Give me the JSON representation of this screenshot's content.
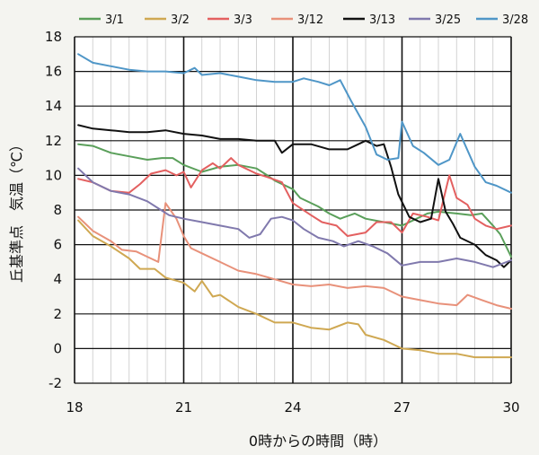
{
  "chart_data": {
    "type": "line",
    "xlabel": "0時からの時間（時）",
    "ylabel": "丘基準点　気温（℃）",
    "xlim": [
      18,
      30
    ],
    "ylim": [
      -2,
      18
    ],
    "x_ticks": [
      "18",
      "21",
      "24",
      "27",
      "30"
    ],
    "y_ticks": [
      "-2",
      "0",
      "2",
      "4",
      "6",
      "8",
      "10",
      "12",
      "14",
      "16",
      "18"
    ],
    "grid": true,
    "legend_position": "top",
    "series": [
      {
        "name": "3/1",
        "color": "#5a9f5a",
        "points": [
          [
            18.1,
            11.8
          ],
          [
            18.5,
            11.7
          ],
          [
            19,
            11.3
          ],
          [
            19.5,
            11.1
          ],
          [
            20,
            10.9
          ],
          [
            20.4,
            11.0
          ],
          [
            20.7,
            11.0
          ],
          [
            21,
            10.6
          ],
          [
            21.5,
            10.2
          ],
          [
            22,
            10.5
          ],
          [
            22.5,
            10.6
          ],
          [
            23,
            10.4
          ],
          [
            23.3,
            10.0
          ],
          [
            23.5,
            9.7
          ],
          [
            24,
            9.2
          ],
          [
            24.2,
            8.7
          ],
          [
            24.7,
            8.2
          ],
          [
            25,
            7.8
          ],
          [
            25.3,
            7.5
          ],
          [
            25.7,
            7.8
          ],
          [
            26,
            7.5
          ],
          [
            26.5,
            7.3
          ],
          [
            27,
            7.1
          ],
          [
            27.3,
            7.4
          ],
          [
            27.7,
            7.8
          ],
          [
            28,
            7.9
          ],
          [
            28.5,
            7.8
          ],
          [
            28.9,
            7.7
          ],
          [
            29.2,
            7.8
          ],
          [
            29.5,
            7.1
          ],
          [
            29.7,
            6.6
          ],
          [
            30,
            5.3
          ]
        ]
      },
      {
        "name": "3/2",
        "color": "#cfa852",
        "points": [
          [
            18.1,
            7.4
          ],
          [
            18.5,
            6.5
          ],
          [
            19,
            5.9
          ],
          [
            19.5,
            5.2
          ],
          [
            19.8,
            4.6
          ],
          [
            20.2,
            4.6
          ],
          [
            20.5,
            4.1
          ],
          [
            21,
            3.8
          ],
          [
            21.3,
            3.3
          ],
          [
            21.5,
            3.9
          ],
          [
            21.8,
            3.0
          ],
          [
            22,
            3.1
          ],
          [
            22.5,
            2.4
          ],
          [
            23,
            2.0
          ],
          [
            23.5,
            1.5
          ],
          [
            24,
            1.5
          ],
          [
            24.5,
            1.2
          ],
          [
            25,
            1.1
          ],
          [
            25.5,
            1.5
          ],
          [
            25.8,
            1.4
          ],
          [
            26,
            0.8
          ],
          [
            26.5,
            0.5
          ],
          [
            27,
            0.0
          ],
          [
            27.5,
            -0.1
          ],
          [
            28,
            -0.3
          ],
          [
            28.5,
            -0.3
          ],
          [
            29,
            -0.5
          ],
          [
            29.5,
            -0.5
          ],
          [
            30,
            -0.5
          ]
        ]
      },
      {
        "name": "3/3",
        "color": "#e36060",
        "points": [
          [
            18.1,
            9.8
          ],
          [
            18.5,
            9.6
          ],
          [
            19,
            9.1
          ],
          [
            19.5,
            9.0
          ],
          [
            19.8,
            9.5
          ],
          [
            20.1,
            10.1
          ],
          [
            20.5,
            10.3
          ],
          [
            20.8,
            10.0
          ],
          [
            21,
            10.2
          ],
          [
            21.2,
            9.3
          ],
          [
            21.5,
            10.3
          ],
          [
            21.8,
            10.7
          ],
          [
            22,
            10.4
          ],
          [
            22.3,
            11.0
          ],
          [
            22.5,
            10.6
          ],
          [
            23,
            10.1
          ],
          [
            23.3,
            9.9
          ],
          [
            23.7,
            9.6
          ],
          [
            24,
            8.4
          ],
          [
            24.5,
            7.7
          ],
          [
            24.8,
            7.3
          ],
          [
            25.2,
            7.1
          ],
          [
            25.5,
            6.5
          ],
          [
            26,
            6.7
          ],
          [
            26.3,
            7.3
          ],
          [
            26.7,
            7.3
          ],
          [
            27,
            6.7
          ],
          [
            27.3,
            7.8
          ],
          [
            27.7,
            7.6
          ],
          [
            28,
            7.4
          ],
          [
            28.3,
            10.0
          ],
          [
            28.5,
            8.7
          ],
          [
            28.8,
            8.3
          ],
          [
            29,
            7.5
          ],
          [
            29.3,
            7.1
          ],
          [
            29.6,
            6.9
          ],
          [
            30,
            7.1
          ]
        ]
      },
      {
        "name": "3/12",
        "color": "#e8917a",
        "points": [
          [
            18.1,
            7.6
          ],
          [
            18.5,
            6.8
          ],
          [
            19,
            6.2
          ],
          [
            19.3,
            5.7
          ],
          [
            19.7,
            5.6
          ],
          [
            20,
            5.3
          ],
          [
            20.3,
            5.0
          ],
          [
            20.5,
            8.4
          ],
          [
            20.8,
            7.5
          ],
          [
            21,
            6.5
          ],
          [
            21.2,
            5.8
          ],
          [
            21.5,
            5.5
          ],
          [
            22,
            5.0
          ],
          [
            22.5,
            4.5
          ],
          [
            23,
            4.3
          ],
          [
            23.5,
            4.0
          ],
          [
            24,
            3.7
          ],
          [
            24.5,
            3.6
          ],
          [
            25,
            3.7
          ],
          [
            25.5,
            3.5
          ],
          [
            26,
            3.6
          ],
          [
            26.5,
            3.5
          ],
          [
            27,
            3.0
          ],
          [
            27.5,
            2.8
          ],
          [
            28,
            2.6
          ],
          [
            28.5,
            2.5
          ],
          [
            28.8,
            3.1
          ],
          [
            29.2,
            2.8
          ],
          [
            29.6,
            2.5
          ],
          [
            30,
            2.3
          ]
        ]
      },
      {
        "name": "3/13",
        "color": "#111111",
        "points": [
          [
            18.1,
            12.9
          ],
          [
            18.5,
            12.7
          ],
          [
            19,
            12.6
          ],
          [
            19.5,
            12.5
          ],
          [
            20,
            12.5
          ],
          [
            20.5,
            12.6
          ],
          [
            21,
            12.4
          ],
          [
            21.5,
            12.3
          ],
          [
            22,
            12.1
          ],
          [
            22.5,
            12.1
          ],
          [
            23,
            12.0
          ],
          [
            23.5,
            12.0
          ],
          [
            23.7,
            11.3
          ],
          [
            24,
            11.8
          ],
          [
            24.5,
            11.8
          ],
          [
            25,
            11.5
          ],
          [
            25.5,
            11.5
          ],
          [
            25.8,
            11.8
          ],
          [
            26,
            12.0
          ],
          [
            26.3,
            11.7
          ],
          [
            26.5,
            11.8
          ],
          [
            26.7,
            10.5
          ],
          [
            26.9,
            8.9
          ],
          [
            27.2,
            7.6
          ],
          [
            27.5,
            7.3
          ],
          [
            27.8,
            7.5
          ],
          [
            28.0,
            9.8
          ],
          [
            28.2,
            7.9
          ],
          [
            28.4,
            7.2
          ],
          [
            28.6,
            6.4
          ],
          [
            29,
            6.0
          ],
          [
            29.3,
            5.4
          ],
          [
            29.6,
            5.1
          ],
          [
            29.8,
            4.7
          ],
          [
            30,
            5.1
          ]
        ]
      },
      {
        "name": "3/25",
        "color": "#8079ad",
        "points": [
          [
            18.1,
            10.4
          ],
          [
            18.5,
            9.6
          ],
          [
            19,
            9.1
          ],
          [
            19.5,
            8.9
          ],
          [
            20,
            8.5
          ],
          [
            20.3,
            8.1
          ],
          [
            20.6,
            7.7
          ],
          [
            21,
            7.5
          ],
          [
            21.5,
            7.3
          ],
          [
            22,
            7.1
          ],
          [
            22.5,
            6.9
          ],
          [
            22.8,
            6.4
          ],
          [
            23.1,
            6.6
          ],
          [
            23.4,
            7.5
          ],
          [
            23.7,
            7.6
          ],
          [
            24,
            7.4
          ],
          [
            24.3,
            6.9
          ],
          [
            24.7,
            6.4
          ],
          [
            25.1,
            6.2
          ],
          [
            25.4,
            5.9
          ],
          [
            25.8,
            6.2
          ],
          [
            26.2,
            5.9
          ],
          [
            26.6,
            5.5
          ],
          [
            27,
            4.8
          ],
          [
            27.5,
            5.0
          ],
          [
            28,
            5.0
          ],
          [
            28.5,
            5.2
          ],
          [
            29,
            5.0
          ],
          [
            29.5,
            4.7
          ],
          [
            30,
            5.1
          ]
        ]
      },
      {
        "name": "3/28",
        "color": "#4f96c7",
        "points": [
          [
            18.1,
            17.0
          ],
          [
            18.5,
            16.5
          ],
          [
            19,
            16.3
          ],
          [
            19.5,
            16.1
          ],
          [
            20,
            16.0
          ],
          [
            20.5,
            16.0
          ],
          [
            21,
            15.9
          ],
          [
            21.3,
            16.2
          ],
          [
            21.5,
            15.8
          ],
          [
            22,
            15.9
          ],
          [
            22.5,
            15.7
          ],
          [
            23,
            15.5
          ],
          [
            23.5,
            15.4
          ],
          [
            24,
            15.4
          ],
          [
            24.3,
            15.6
          ],
          [
            24.7,
            15.4
          ],
          [
            25,
            15.2
          ],
          [
            25.3,
            15.5
          ],
          [
            25.6,
            14.3
          ],
          [
            26,
            12.8
          ],
          [
            26.3,
            11.2
          ],
          [
            26.6,
            10.9
          ],
          [
            26.9,
            11.0
          ],
          [
            27,
            13.1
          ],
          [
            27.3,
            11.7
          ],
          [
            27.6,
            11.3
          ],
          [
            28,
            10.6
          ],
          [
            28.3,
            10.9
          ],
          [
            28.6,
            12.4
          ],
          [
            29,
            10.5
          ],
          [
            29.3,
            9.6
          ],
          [
            29.6,
            9.4
          ],
          [
            30,
            9.0
          ]
        ]
      }
    ]
  }
}
